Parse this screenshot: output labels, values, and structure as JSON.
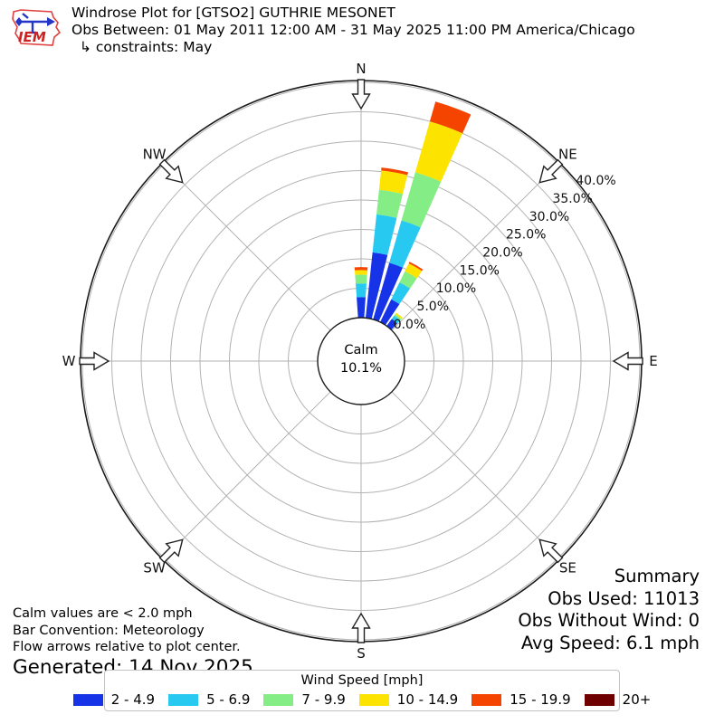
{
  "header": {
    "logo_text": "IEM",
    "title": "Windrose Plot for [GTSO2] GUTHRIE MESONET",
    "subtitle": "Obs Between: 01 May 2011 12:00 AM - 31 May 2025 11:00 PM America/Chicago",
    "constraints": "↳ constraints: May"
  },
  "chart_data": {
    "type": "windrose-polar-bar",
    "units": "mph",
    "direction_labels": [
      "N",
      "NE",
      "E",
      "SE",
      "S",
      "SW",
      "W",
      "NW"
    ],
    "radial_ticks_pct": [
      0,
      5,
      10,
      15,
      20,
      25,
      30,
      35,
      40
    ],
    "radial_tick_labels": [
      "0.0%",
      "5.0%",
      "10.0%",
      "15.0%",
      "20.0%",
      "25.0%",
      "30.0%",
      "35.0%",
      "40.0%"
    ],
    "rmax_pct": 40,
    "grid": "on",
    "calm": {
      "label": "Calm",
      "value_label": "10.1%"
    },
    "speed_bins": [
      {
        "label": "2 - 4.9",
        "color": "#1733e8"
      },
      {
        "label": "5 - 6.9",
        "color": "#28c9f0"
      },
      {
        "label": "7 - 9.9",
        "color": "#84ed85"
      },
      {
        "label": "10 - 14.9",
        "color": "#fce300"
      },
      {
        "label": "15 - 19.9",
        "color": "#f54400"
      },
      {
        "label": "20+",
        "color": "#6e0000"
      }
    ],
    "bars": [
      {
        "direction_deg": 0,
        "segments_pct": [
          3.5,
          2.3,
          1.5,
          0.8,
          0.5,
          0
        ],
        "total_pct": 8.6
      },
      {
        "direction_deg": 10,
        "segments_pct": [
          11.2,
          6.5,
          4.2,
          3.3,
          0.5,
          0
        ],
        "total_pct": 25.7
      },
      {
        "direction_deg": 20,
        "segments_pct": [
          10.0,
          7.5,
          8.5,
          9.0,
          3.5,
          0
        ],
        "total_pct": 38.5
      },
      {
        "direction_deg": 30,
        "segments_pct": [
          4.3,
          3.2,
          2.1,
          1.5,
          0.3,
          0
        ],
        "total_pct": 11.4
      },
      {
        "direction_deg": 40,
        "segments_pct": [
          1.5,
          0.7,
          0.3,
          0.3,
          0,
          0
        ],
        "total_pct": 2.8
      }
    ],
    "legend_title": "Wind Speed [mph]"
  },
  "footer": {
    "lines": [
      "Calm values are < 2.0 mph",
      "Bar Convention: Meteorology",
      "Flow arrows relative to plot center."
    ],
    "generated": "Generated: 14 Nov 2025"
  },
  "summary": {
    "title": "Summary",
    "obs_used": "Obs Used: 11013",
    "obs_without_wind": "Obs Without Wind: 0",
    "avg_speed": "Avg Speed: 6.1 mph"
  }
}
